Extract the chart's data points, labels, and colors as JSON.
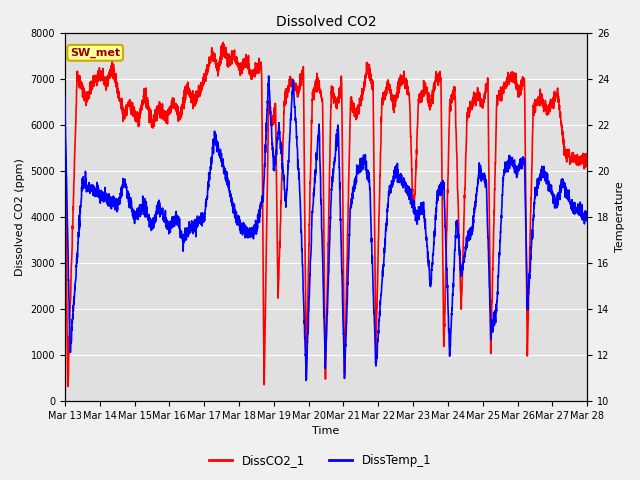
{
  "title": "Dissolved CO2",
  "xlabel": "Time",
  "ylabel_left": "Dissolved CO2 (ppm)",
  "ylabel_right": "Temperature",
  "ylim_left": [
    0,
    8000
  ],
  "ylim_right": [
    10,
    26
  ],
  "yticks_left": [
    0,
    1000,
    2000,
    3000,
    4000,
    5000,
    6000,
    7000,
    8000
  ],
  "yticks_right": [
    10,
    12,
    14,
    16,
    18,
    20,
    22,
    24,
    26
  ],
  "xtick_labels": [
    "Mar 13",
    "Mar 14",
    "Mar 15",
    "Mar 16",
    "Mar 17",
    "Mar 18",
    "Mar 19",
    "Mar 20",
    "Mar 21",
    "Mar 22",
    "Mar 23",
    "Mar 24",
    "Mar 25",
    "Mar 26",
    "Mar 27",
    "Mar 28"
  ],
  "legend_labels": [
    "DissCO2_1",
    "DissTemp_1"
  ],
  "legend_colors": [
    "red",
    "blue"
  ],
  "line_color_co2": "red",
  "line_color_temp": "blue",
  "line_width": 1.2,
  "fig_bg_color": "#f0f0f0",
  "plot_bg_color": "#e0e0e0",
  "grid_color": "#ffffff",
  "annotation_text": "SW_met",
  "annotation_fg": "#990000",
  "annotation_bg": "#ffff99",
  "annotation_border": "#ccaa00"
}
